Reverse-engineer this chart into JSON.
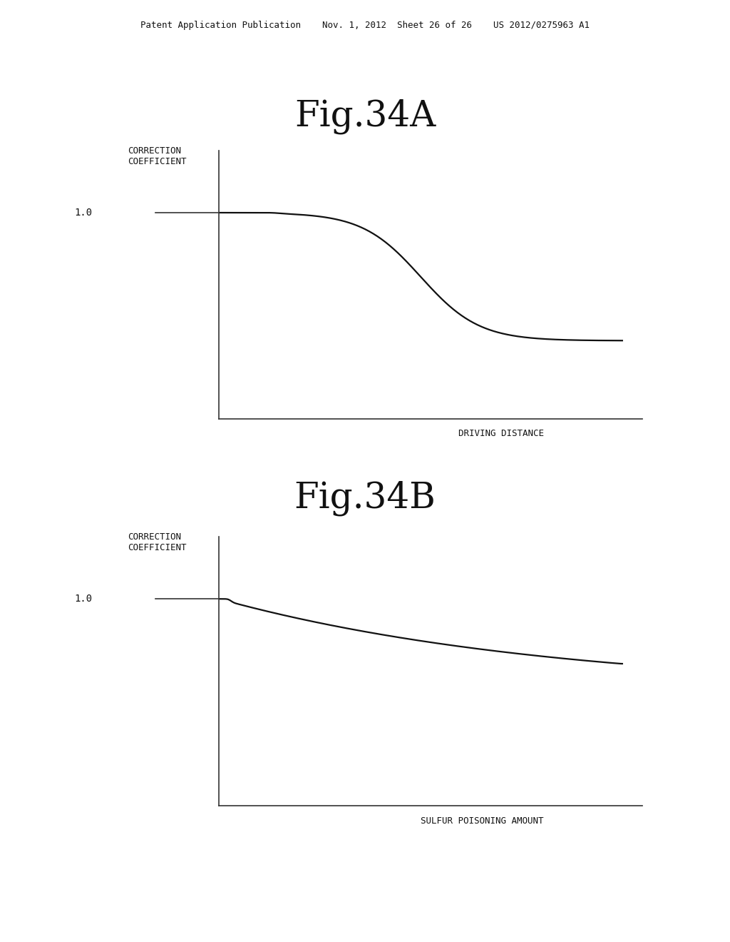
{
  "background_color": "#ffffff",
  "header_text": "Patent Application Publication    Nov. 1, 2012  Sheet 26 of 26    US 2012/0275963 A1",
  "header_fontsize": 9,
  "fig34A_title": "Fig.34A",
  "fig34B_title": "Fig.34B",
  "title_fontsize": 36,
  "ylabel_A": "CORRECTION\nCOEFFICIENT",
  "xlabel_A": "DRIVING DISTANCE",
  "ylabel_B": "CORRECTION\nCOEFFICIENT",
  "xlabel_B": "SULFUR POISONING AMOUNT",
  "axis_label_fontsize": 9,
  "tick_label_A": "1.0",
  "tick_label_B": "1.0",
  "tick_fontsize": 10,
  "curve_color": "#111111",
  "curve_linewidth": 1.6,
  "axis_linewidth": 1.2
}
